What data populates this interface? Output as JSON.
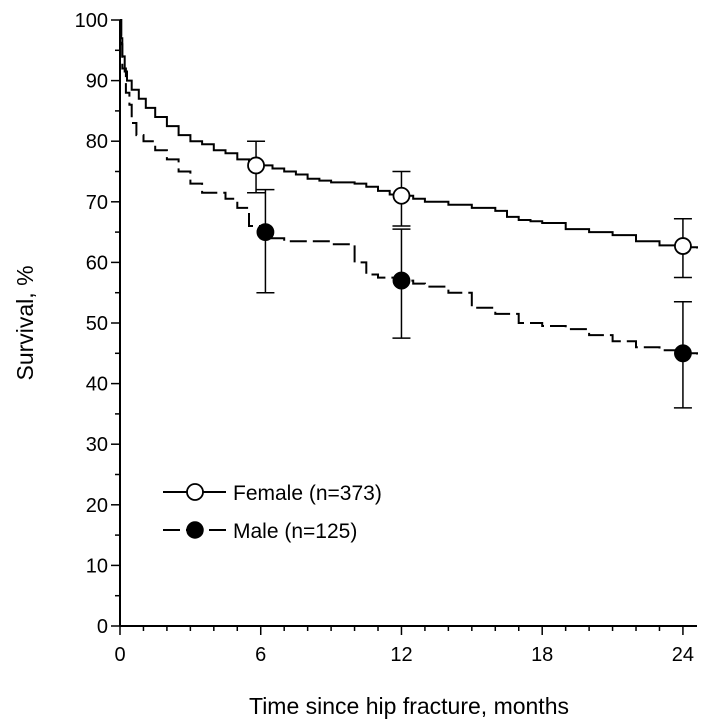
{
  "chart_data": {
    "type": "line",
    "xlabel": "Time since hip fracture, months",
    "ylabel": "Survival, %",
    "xlim": [
      0,
      24.6
    ],
    "ylim": [
      0,
      100
    ],
    "x_major_ticks": [
      0,
      6,
      12,
      18,
      24
    ],
    "x_minor_step": 1,
    "y_ticks": [
      0,
      10,
      20,
      30,
      40,
      50,
      60,
      70,
      80,
      90,
      100
    ],
    "y_minor_step": 5,
    "grid": false,
    "legend_position": "lower-left",
    "series": [
      {
        "name": "Female (n=373)",
        "line_style": "solid",
        "marker": "open-circle",
        "color": "#000000",
        "curve": [
          [
            0,
            100
          ],
          [
            0.05,
            97
          ],
          [
            0.1,
            94
          ],
          [
            0.2,
            91.5
          ],
          [
            0.3,
            90
          ],
          [
            0.5,
            88.5
          ],
          [
            0.8,
            87
          ],
          [
            1.1,
            85.5
          ],
          [
            1.5,
            84
          ],
          [
            2,
            82.5
          ],
          [
            2.5,
            81
          ],
          [
            3,
            80
          ],
          [
            3.5,
            79.5
          ],
          [
            4,
            78.5
          ],
          [
            4.5,
            78
          ],
          [
            5,
            77
          ],
          [
            5.5,
            76.5
          ],
          [
            6,
            76
          ],
          [
            6.5,
            75.5
          ],
          [
            7,
            75
          ],
          [
            7.5,
            74.5
          ],
          [
            8,
            73.8
          ],
          [
            8.5,
            73.5
          ],
          [
            9,
            73.2
          ],
          [
            10,
            73
          ],
          [
            10.5,
            72.5
          ],
          [
            11,
            71.8
          ],
          [
            11.5,
            71.2
          ],
          [
            12,
            71
          ],
          [
            12.5,
            70.5
          ],
          [
            13,
            70
          ],
          [
            14,
            69.5
          ],
          [
            15,
            69
          ],
          [
            16,
            68.5
          ],
          [
            16.5,
            67.5
          ],
          [
            17,
            67
          ],
          [
            17.5,
            66.8
          ],
          [
            18,
            66.5
          ],
          [
            19,
            65.5
          ],
          [
            20,
            65
          ],
          [
            21,
            64.5
          ],
          [
            22,
            63.5
          ],
          [
            23,
            62.8
          ],
          [
            24,
            62.5
          ],
          [
            24.6,
            62.3
          ]
        ],
        "points": [
          {
            "x": 5.8,
            "y": 76,
            "lower": 71.5,
            "upper": 80
          },
          {
            "x": 12,
            "y": 71,
            "lower": 66,
            "upper": 75
          },
          {
            "x": 24,
            "y": 62.7,
            "lower": 57.5,
            "upper": 67.2
          }
        ]
      },
      {
        "name": "Male (n=125)",
        "line_style": "dashed",
        "marker": "filled-circle",
        "color": "#000000",
        "curve": [
          [
            0,
            100
          ],
          [
            0.05,
            96
          ],
          [
            0.1,
            92
          ],
          [
            0.25,
            88
          ],
          [
            0.4,
            86
          ],
          [
            0.5,
            83
          ],
          [
            0.7,
            81
          ],
          [
            1,
            80
          ],
          [
            1.5,
            78.5
          ],
          [
            2,
            77
          ],
          [
            2.5,
            75
          ],
          [
            3,
            73
          ],
          [
            3.5,
            71.5
          ],
          [
            4.5,
            70.5
          ],
          [
            5,
            69
          ],
          [
            5.5,
            66
          ],
          [
            6,
            64
          ],
          [
            7,
            63.5
          ],
          [
            8,
            63.5
          ],
          [
            9,
            63
          ],
          [
            10,
            60
          ],
          [
            10.5,
            58
          ],
          [
            11,
            57.5
          ],
          [
            12,
            57
          ],
          [
            12.5,
            56.5
          ],
          [
            13,
            56
          ],
          [
            14,
            55
          ],
          [
            15,
            52.5
          ],
          [
            16,
            51.5
          ],
          [
            17,
            50
          ],
          [
            18,
            49.5
          ],
          [
            19,
            49
          ],
          [
            20,
            48
          ],
          [
            21,
            47
          ],
          [
            22,
            46
          ],
          [
            23,
            45.5
          ],
          [
            24,
            45
          ],
          [
            24.6,
            44.8
          ]
        ],
        "points": [
          {
            "x": 6.2,
            "y": 65,
            "lower": 55,
            "upper": 72
          },
          {
            "x": 12,
            "y": 57,
            "lower": 47.5,
            "upper": 65.5
          },
          {
            "x": 24,
            "y": 45,
            "lower": 36,
            "upper": 53.5
          }
        ]
      }
    ]
  }
}
